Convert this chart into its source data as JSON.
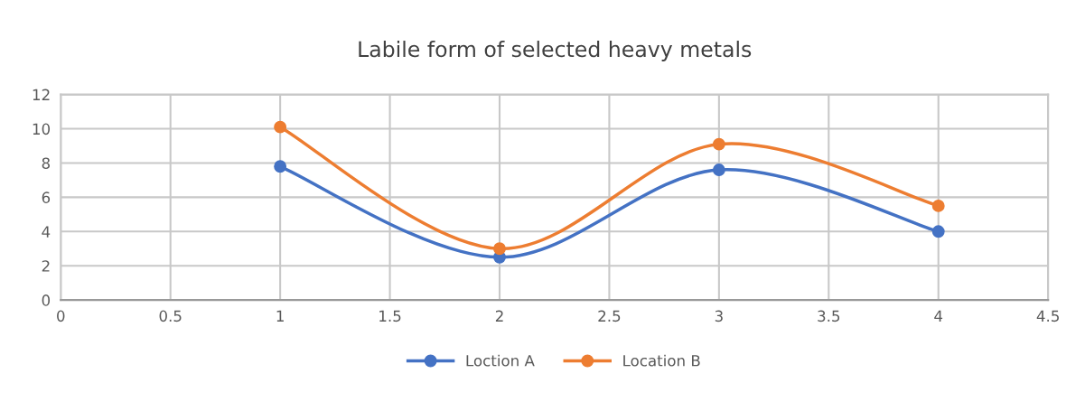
{
  "chart_data": {
    "type": "line",
    "title": "Labile form of selected heavy metals",
    "x": [
      1,
      2,
      3,
      4
    ],
    "series": [
      {
        "name": "Loction A",
        "color": "#4472c4",
        "values": [
          7.8,
          2.5,
          7.6,
          4.0
        ]
      },
      {
        "name": "Location B",
        "color": "#ed7d31",
        "values": [
          10.1,
          3.0,
          9.1,
          5.5
        ]
      }
    ],
    "xlim": [
      0,
      4.5
    ],
    "xticks": [
      0,
      0.5,
      1,
      1.5,
      2,
      2.5,
      3,
      3.5,
      4,
      4.5
    ],
    "ylim": [
      0,
      12
    ],
    "yticks": [
      0,
      2,
      4,
      6,
      8,
      10,
      12
    ],
    "grid": true,
    "legend": "bottom",
    "marker": "circle",
    "line_style": "solid"
  }
}
